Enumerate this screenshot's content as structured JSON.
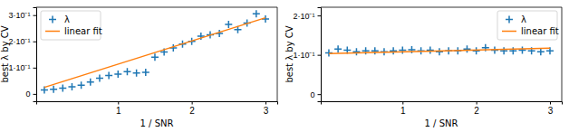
{
  "chart_data": [
    {
      "type": "scatter",
      "x_label": "1 / SNR",
      "y_label": "best λ by CV",
      "legend": "upper left",
      "xlim": [
        -0.11,
        3.16
      ],
      "xticks": [
        1,
        2,
        3
      ],
      "ylim": [
        -0.028,
        0.33
      ],
      "yticks": [
        0,
        {
          "value": 0.1,
          "label": "1·10⁻¹"
        },
        {
          "value": 0.2,
          "label": "2·10⁻¹"
        },
        {
          "value": 0.3,
          "label": "3·10⁻¹"
        }
      ],
      "series": [
        {
          "name": "λ",
          "type": "scatter",
          "marker": "plus",
          "color": "#1f77b4",
          "x": [
            0,
            0.125,
            0.25,
            0.375,
            0.5,
            0.625,
            0.75,
            0.875,
            1,
            1.125,
            1.25,
            1.375,
            1.5,
            1.625,
            1.75,
            1.875,
            2,
            2.125,
            2.25,
            2.375,
            2.5,
            2.625,
            2.75,
            2.875,
            3
          ],
          "values": [
            0.015,
            0.018,
            0.022,
            0.027,
            0.033,
            0.045,
            0.06,
            0.07,
            0.075,
            0.085,
            0.08,
            0.082,
            0.14,
            0.16,
            0.175,
            0.19,
            0.2,
            0.22,
            0.225,
            0.23,
            0.265,
            0.245,
            0.27,
            0.305,
            0.285
          ]
        },
        {
          "name": "linear fit",
          "type": "line",
          "color": "#ff7f0e",
          "x": [
            0,
            3
          ],
          "values": [
            0.025,
            0.29
          ]
        }
      ]
    },
    {
      "type": "scatter",
      "x_label": "1 / SNR",
      "y_label": "best λ by CV",
      "legend": "upper right",
      "xlim": [
        -0.11,
        3.16
      ],
      "xticks": [
        1,
        2,
        3
      ],
      "ylim": [
        -0.018,
        0.221
      ],
      "yticks": [
        0,
        {
          "value": 0.1,
          "label": "1·10⁻¹"
        },
        {
          "value": 0.2,
          "label": "2·10⁻¹"
        }
      ],
      "series": [
        {
          "name": "λ",
          "type": "scatter",
          "marker": "plus",
          "color": "#1f77b4",
          "x": [
            0,
            0.125,
            0.25,
            0.375,
            0.5,
            0.625,
            0.75,
            0.875,
            1,
            1.125,
            1.25,
            1.375,
            1.5,
            1.625,
            1.75,
            1.875,
            2,
            2.125,
            2.25,
            2.375,
            2.5,
            2.625,
            2.75,
            2.875,
            3
          ],
          "values": [
            0.105,
            0.115,
            0.112,
            0.108,
            0.11,
            0.11,
            0.108,
            0.11,
            0.112,
            0.113,
            0.11,
            0.112,
            0.108,
            0.11,
            0.11,
            0.115,
            0.11,
            0.118,
            0.112,
            0.11,
            0.11,
            0.112,
            0.11,
            0.108,
            0.11
          ]
        },
        {
          "name": "linear fit",
          "type": "line",
          "color": "#ff7f0e",
          "x": [
            0,
            3
          ],
          "values": [
            0.103,
            0.117
          ]
        }
      ]
    }
  ]
}
